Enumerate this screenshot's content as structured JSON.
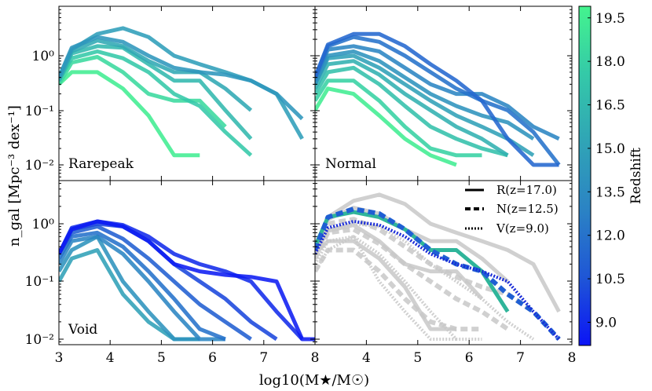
{
  "chart_data": {
    "type": "line",
    "title": "",
    "xlabel": "log10(M★/M☉)",
    "ylabel": "n_gal [Mpc⁻³ dex⁻¹]",
    "x_ticks": [
      "3",
      "4",
      "5",
      "6",
      "7",
      "8"
    ],
    "y_ticks": [
      "10⁻²",
      "10⁻¹",
      "10⁰"
    ],
    "xlim": [
      3,
      8
    ],
    "ylim_log10": [
      -2.15,
      0.85
    ],
    "colorbar": {
      "label": "Redshift",
      "range": [
        8.2,
        19.9
      ],
      "ticks": [
        "9.0",
        "10.5",
        "12.0",
        "13.5",
        "15.0",
        "16.5",
        "18.0",
        "19.5"
      ],
      "colors": [
        "#0b14f6",
        "#1f56d6",
        "#2b83c4",
        "#30a4b6",
        "#34c9a8",
        "#44f48e"
      ]
    },
    "panels": [
      {
        "name": "Rarepeak",
        "series": [
          {
            "z": 19.5,
            "x": [
              3.0,
              3.25,
              3.75,
              4.25,
              4.75,
              5.25,
              5.75
            ],
            "y": [
              0.3,
              0.5,
              0.5,
              0.25,
              0.08,
              0.015,
              0.015
            ]
          },
          {
            "z": 18.5,
            "x": [
              3.0,
              3.25,
              3.75,
              4.25,
              4.75,
              5.25,
              5.75,
              6.25
            ],
            "y": [
              0.3,
              0.75,
              0.95,
              0.5,
              0.2,
              0.15,
              0.15,
              0.05
            ]
          },
          {
            "z": 17.5,
            "x": [
              3.0,
              3.25,
              3.75,
              4.25,
              4.75,
              5.25,
              5.75,
              6.25,
              6.75
            ],
            "y": [
              0.35,
              0.9,
              1.2,
              0.9,
              0.5,
              0.2,
              0.12,
              0.04,
              0.015
            ]
          },
          {
            "z": 16.5,
            "x": [
              3.0,
              3.25,
              3.75,
              4.25,
              4.75,
              5.25,
              5.75,
              6.25,
              6.75
            ],
            "y": [
              0.35,
              1.1,
              1.5,
              1.4,
              0.7,
              0.35,
              0.35,
              0.1,
              0.03
            ]
          },
          {
            "z": 15.5,
            "x": [
              3.0,
              3.25,
              3.75,
              4.25,
              4.75,
              5.25,
              5.75,
              6.25,
              6.75
            ],
            "y": [
              0.35,
              1.2,
              1.9,
              1.5,
              0.8,
              0.5,
              0.5,
              0.25,
              0.1
            ]
          },
          {
            "z": 14.8,
            "x": [
              3.0,
              3.25,
              3.75,
              4.25,
              4.75,
              5.25,
              5.75,
              6.25,
              6.75,
              7.25,
              7.75
            ],
            "y": [
              0.4,
              1.3,
              2.5,
              3.2,
              2.2,
              1.0,
              0.7,
              0.5,
              0.35,
              0.2,
              0.03
            ]
          },
          {
            "z": 14.2,
            "x": [
              3.0,
              3.25,
              3.75,
              4.25,
              4.75,
              5.25,
              5.75,
              6.25,
              6.75,
              7.25,
              7.75
            ],
            "y": [
              0.4,
              1.4,
              2.2,
              1.8,
              1.0,
              0.6,
              0.5,
              0.45,
              0.35,
              0.2,
              0.07
            ]
          }
        ]
      },
      {
        "name": "Normal",
        "series": [
          {
            "z": 19.5,
            "x": [
              3.0,
              3.25,
              3.75,
              4.25,
              4.75,
              5.25,
              5.75
            ],
            "y": [
              0.1,
              0.25,
              0.2,
              0.08,
              0.03,
              0.015,
              0.01
            ]
          },
          {
            "z": 18.0,
            "x": [
              3.0,
              3.25,
              3.75,
              4.25,
              4.75,
              5.25,
              5.75,
              6.25
            ],
            "y": [
              0.15,
              0.35,
              0.35,
              0.15,
              0.05,
              0.02,
              0.015,
              0.015
            ]
          },
          {
            "z": 17.0,
            "x": [
              3.0,
              3.25,
              3.75,
              4.25,
              4.75,
              5.25,
              5.75,
              6.25,
              6.75
            ],
            "y": [
              0.2,
              0.5,
              0.6,
              0.3,
              0.12,
              0.05,
              0.03,
              0.02,
              0.015
            ]
          },
          {
            "z": 16.0,
            "x": [
              3.0,
              3.25,
              3.75,
              4.25,
              4.75,
              5.25,
              5.75,
              6.25,
              6.75
            ],
            "y": [
              0.25,
              0.7,
              0.8,
              0.45,
              0.2,
              0.1,
              0.05,
              0.03,
              0.015
            ]
          },
          {
            "z": 15.0,
            "x": [
              3.0,
              3.25,
              3.75,
              4.25,
              4.75,
              5.25,
              5.75,
              6.25,
              6.75,
              7.25
            ],
            "y": [
              0.3,
              0.9,
              1.0,
              0.6,
              0.3,
              0.15,
              0.08,
              0.05,
              0.03,
              0.015
            ]
          },
          {
            "z": 14.0,
            "x": [
              3.0,
              3.25,
              3.75,
              4.25,
              4.75,
              5.25,
              5.75,
              6.25,
              6.75,
              7.25
            ],
            "y": [
              0.3,
              1.0,
              1.2,
              0.8,
              0.4,
              0.2,
              0.12,
              0.08,
              0.06,
              0.03
            ]
          },
          {
            "z": 13.0,
            "x": [
              3.0,
              3.25,
              3.75,
              4.25,
              4.75,
              5.25,
              5.75,
              6.25,
              6.75,
              7.25,
              7.75
            ],
            "y": [
              0.35,
              1.3,
              1.5,
              1.2,
              0.6,
              0.3,
              0.2,
              0.2,
              0.12,
              0.05,
              0.03
            ]
          },
          {
            "z": 12.0,
            "x": [
              3.0,
              3.25,
              3.75,
              4.25,
              4.75,
              5.25,
              5.75,
              6.25,
              6.75,
              7.25,
              7.75
            ],
            "y": [
              0.4,
              1.5,
              2.2,
              1.8,
              1.0,
              0.5,
              0.25,
              0.15,
              0.1,
              0.04,
              0.01
            ]
          },
          {
            "z": 11.5,
            "x": [
              3.0,
              3.25,
              3.75,
              4.25,
              4.75,
              5.25,
              5.75,
              6.25,
              6.75,
              7.25,
              7.75
            ],
            "y": [
              0.4,
              1.6,
              2.5,
              2.5,
              1.5,
              0.7,
              0.35,
              0.15,
              0.03,
              0.01,
              0.01
            ]
          }
        ]
      },
      {
        "name": "Void",
        "series": [
          {
            "z": 15.0,
            "x": [
              3.0,
              3.25,
              3.75,
              4.25,
              4.75,
              5.25,
              5.75
            ],
            "y": [
              0.1,
              0.25,
              0.35,
              0.06,
              0.02,
              0.01,
              0.01
            ]
          },
          {
            "z": 14.0,
            "x": [
              3.0,
              3.25,
              3.75,
              4.25,
              4.75,
              5.25,
              5.75
            ],
            "y": [
              0.15,
              0.35,
              0.6,
              0.1,
              0.03,
              0.01,
              0.01
            ]
          },
          {
            "z": 13.0,
            "x": [
              3.0,
              3.25,
              3.75,
              4.25,
              4.75,
              5.25,
              5.75,
              6.25
            ],
            "y": [
              0.2,
              0.5,
              0.6,
              0.3,
              0.1,
              0.03,
              0.01,
              0.01
            ]
          },
          {
            "z": 12.0,
            "x": [
              3.0,
              3.25,
              3.75,
              4.25,
              4.75,
              5.25,
              5.75,
              6.25
            ],
            "y": [
              0.25,
              0.6,
              0.7,
              0.4,
              0.15,
              0.05,
              0.015,
              0.01
            ]
          },
          {
            "z": 11.0,
            "x": [
              3.0,
              3.25,
              3.75,
              4.25,
              4.75,
              5.25,
              5.75,
              6.25,
              6.75
            ],
            "y": [
              0.3,
              0.7,
              0.9,
              0.55,
              0.25,
              0.1,
              0.04,
              0.02,
              0.01
            ]
          },
          {
            "z": 10.0,
            "x": [
              3.0,
              3.25,
              3.75,
              4.25,
              4.75,
              5.25,
              5.75,
              6.25,
              6.75,
              7.25
            ],
            "y": [
              0.3,
              0.8,
              1.0,
              0.9,
              0.5,
              0.2,
              0.1,
              0.05,
              0.02,
              0.01
            ]
          },
          {
            "z": 9.0,
            "x": [
              3.0,
              3.25,
              3.75,
              4.25,
              4.75,
              5.25,
              5.75,
              6.25,
              6.75,
              7.25,
              7.75
            ],
            "y": [
              0.3,
              0.85,
              1.1,
              0.95,
              0.6,
              0.3,
              0.2,
              0.15,
              0.1,
              0.03,
              0.01
            ]
          },
          {
            "z": 8.5,
            "x": [
              3.0,
              3.25,
              3.75,
              4.25,
              4.75,
              5.25,
              5.75,
              6.25,
              6.75,
              7.25,
              7.75,
              8.0
            ],
            "y": [
              0.3,
              0.8,
              1.1,
              0.9,
              0.5,
              0.2,
              0.15,
              0.13,
              0.12,
              0.1,
              0.01,
              0.01
            ]
          }
        ]
      },
      {
        "name": "",
        "legend": [
          {
            "label": "R(z=17.0)",
            "style": "solid"
          },
          {
            "label": "N(z=12.5)",
            "style": "dashed"
          },
          {
            "label": "V(z=9.0)",
            "style": "dotted"
          }
        ],
        "background_series": [
          {
            "style": "solid",
            "x": [
              3.0,
              3.25,
              3.75,
              4.25,
              4.75,
              5.25,
              5.75,
              6.25,
              6.75,
              7.25,
              7.75
            ],
            "y": [
              0.4,
              1.3,
              2.5,
              3.2,
              2.2,
              1.0,
              0.7,
              0.5,
              0.35,
              0.2,
              0.03
            ]
          },
          {
            "style": "solid",
            "x": [
              3.0,
              3.25,
              3.75,
              4.25,
              4.75,
              5.25,
              5.75,
              6.25,
              6.75
            ],
            "y": [
              0.35,
              1.2,
              1.9,
              1.5,
              0.8,
              0.5,
              0.5,
              0.25,
              0.1
            ]
          },
          {
            "style": "solid",
            "x": [
              3.0,
              3.25,
              3.75,
              4.25,
              4.75,
              5.25,
              5.75,
              6.25
            ],
            "y": [
              0.3,
              0.75,
              0.95,
              0.5,
              0.2,
              0.15,
              0.15,
              0.05
            ]
          },
          {
            "style": "solid",
            "x": [
              3.0,
              3.25,
              3.75,
              4.25,
              4.75,
              5.25,
              5.75
            ],
            "y": [
              0.3,
              0.5,
              0.5,
              0.25,
              0.08,
              0.015,
              0.015
            ]
          },
          {
            "style": "dashed",
            "x": [
              3.0,
              3.25,
              3.75,
              4.25,
              4.75,
              5.25,
              5.75,
              6.25,
              6.75
            ],
            "y": [
              0.25,
              0.7,
              0.8,
              0.45,
              0.2,
              0.1,
              0.05,
              0.03,
              0.015
            ]
          },
          {
            "style": "dashed",
            "x": [
              3.0,
              3.25,
              3.75,
              4.25,
              4.75,
              5.25,
              5.75,
              6.25
            ],
            "y": [
              0.15,
              0.35,
              0.35,
              0.15,
              0.05,
              0.02,
              0.015,
              0.015
            ]
          },
          {
            "style": "dashed",
            "x": [
              3.0,
              3.25,
              3.75,
              4.25,
              4.75,
              5.25,
              5.75,
              6.25,
              6.75,
              7.25
            ],
            "y": [
              0.3,
              1.0,
              1.2,
              0.8,
              0.4,
              0.2,
              0.12,
              0.08,
              0.06,
              0.03
            ]
          },
          {
            "style": "dotted",
            "x": [
              3.0,
              3.25,
              3.75,
              4.25,
              4.75,
              5.25,
              5.75,
              6.25
            ],
            "y": [
              0.2,
              0.5,
              0.6,
              0.3,
              0.1,
              0.03,
              0.01,
              0.01
            ]
          },
          {
            "style": "dotted",
            "x": [
              3.0,
              3.25,
              3.75,
              4.25,
              4.75,
              5.25,
              5.75
            ],
            "y": [
              0.15,
              0.35,
              0.6,
              0.1,
              0.03,
              0.01,
              0.01
            ]
          },
          {
            "style": "dotted",
            "x": [
              3.0,
              3.25,
              3.75,
              4.25,
              4.75,
              5.25,
              5.75,
              6.25,
              6.75,
              7.25
            ],
            "y": [
              0.3,
              0.8,
              1.0,
              0.9,
              0.5,
              0.2,
              0.1,
              0.05,
              0.02,
              0.01
            ]
          }
        ],
        "series": [
          {
            "label": "R(z=17.0)",
            "style": "solid",
            "color": "#2fb59a",
            "x": [
              3.0,
              3.25,
              3.75,
              4.25,
              4.75,
              5.25,
              5.75,
              6.25,
              6.75
            ],
            "y": [
              0.4,
              1.3,
              1.6,
              1.3,
              0.8,
              0.35,
              0.35,
              0.15,
              0.03
            ]
          },
          {
            "label": "N(z=12.5)",
            "style": "dashed",
            "color": "#1f5fd3",
            "x": [
              3.0,
              3.25,
              3.75,
              4.25,
              4.75,
              5.25,
              5.75,
              6.25,
              6.75,
              7.25,
              7.75
            ],
            "y": [
              0.35,
              1.3,
              1.8,
              1.5,
              0.8,
              0.35,
              0.2,
              0.15,
              0.06,
              0.03,
              0.01
            ]
          },
          {
            "label": "V(z=9.0)",
            "style": "dotted",
            "color": "#1a2cd8",
            "x": [
              3.0,
              3.25,
              3.75,
              4.25,
              4.75,
              5.25,
              5.75,
              6.25,
              6.75,
              7.25,
              7.75
            ],
            "y": [
              0.3,
              0.85,
              1.1,
              0.95,
              0.6,
              0.3,
              0.2,
              0.15,
              0.1,
              0.03,
              0.01
            ]
          }
        ]
      }
    ]
  }
}
